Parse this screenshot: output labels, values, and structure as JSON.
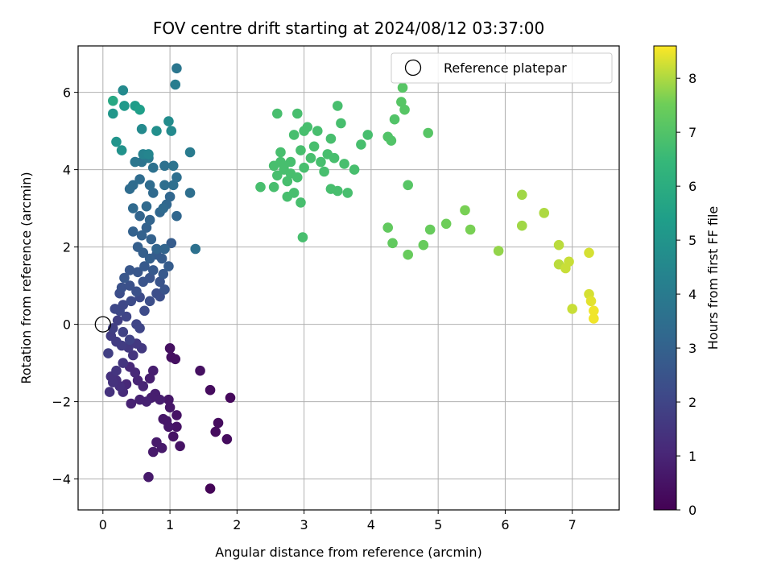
{
  "chart_data": {
    "type": "scatter",
    "title": "FOV centre drift starting at 2024/08/12 03:37:00",
    "xlabel": "Angular distance from reference (arcmin)",
    "ylabel": "Rotation from reference (arcmin)",
    "xlim": [
      -0.37,
      7.7
    ],
    "ylim": [
      -4.8,
      7.2
    ],
    "xticks": [
      0,
      1,
      2,
      3,
      4,
      5,
      6,
      7
    ],
    "yticks": [
      -4,
      -2,
      0,
      2,
      4,
      6
    ],
    "ytick_labels": [
      "−4",
      "−2",
      "0",
      "2",
      "4",
      "6"
    ],
    "grid": true,
    "legend": {
      "label": "Reference platepar",
      "placement": "top-right"
    },
    "reference_point": {
      "x": 0,
      "y": 0
    },
    "colorbar": {
      "label": "Hours from first FF file",
      "min": 0,
      "max": 8.6,
      "ticks": [
        0,
        1,
        2,
        3,
        4,
        5,
        6,
        7,
        8
      ],
      "colormap": "viridis"
    },
    "points": [
      {
        "x": 1.6,
        "y": -4.25,
        "h": 0.1
      },
      {
        "x": 1.85,
        "y": -2.97,
        "h": 0.3
      },
      {
        "x": 1.9,
        "y": -1.9,
        "h": 0.2
      },
      {
        "x": 1.72,
        "y": -2.55,
        "h": 0.3
      },
      {
        "x": 1.68,
        "y": -2.78,
        "h": 0.3
      },
      {
        "x": 1.6,
        "y": -1.7,
        "h": 0.3
      },
      {
        "x": 1.45,
        "y": -1.2,
        "h": 0.4
      },
      {
        "x": 1.15,
        "y": -3.15,
        "h": 0.5
      },
      {
        "x": 1.1,
        "y": -2.65,
        "h": 0.5
      },
      {
        "x": 1.1,
        "y": -2.35,
        "h": 0.5
      },
      {
        "x": 1.05,
        "y": -2.9,
        "h": 0.5
      },
      {
        "x": 1.0,
        "y": -0.62,
        "h": 0.4
      },
      {
        "x": 1.02,
        "y": -0.85,
        "h": 0.4
      },
      {
        "x": 1.08,
        "y": -0.9,
        "h": 0.4
      },
      {
        "x": 0.95,
        "y": -2.5,
        "h": 0.6
      },
      {
        "x": 0.98,
        "y": -2.65,
        "h": 0.6
      },
      {
        "x": 0.9,
        "y": -2.45,
        "h": 0.6
      },
      {
        "x": 1.0,
        "y": -2.15,
        "h": 0.6
      },
      {
        "x": 0.98,
        "y": -1.95,
        "h": 0.6
      },
      {
        "x": 0.88,
        "y": -3.2,
        "h": 0.7
      },
      {
        "x": 0.8,
        "y": -3.05,
        "h": 0.7
      },
      {
        "x": 0.75,
        "y": -3.3,
        "h": 0.7
      },
      {
        "x": 0.68,
        "y": -3.95,
        "h": 0.7
      },
      {
        "x": 0.78,
        "y": -1.8,
        "h": 0.8
      },
      {
        "x": 0.85,
        "y": -1.95,
        "h": 0.8
      },
      {
        "x": 0.72,
        "y": -1.9,
        "h": 0.8
      },
      {
        "x": 0.75,
        "y": -1.2,
        "h": 0.8
      },
      {
        "x": 0.7,
        "y": -1.4,
        "h": 0.8
      },
      {
        "x": 0.65,
        "y": -2.0,
        "h": 0.9
      },
      {
        "x": 0.55,
        "y": -1.95,
        "h": 0.9
      },
      {
        "x": 0.42,
        "y": -2.05,
        "h": 0.9
      },
      {
        "x": 0.52,
        "y": -1.45,
        "h": 1.0
      },
      {
        "x": 0.6,
        "y": -1.6,
        "h": 1.0
      },
      {
        "x": 0.48,
        "y": -1.25,
        "h": 1.1
      },
      {
        "x": 0.4,
        "y": -1.1,
        "h": 1.1
      },
      {
        "x": 0.35,
        "y": -1.55,
        "h": 1.1
      },
      {
        "x": 0.3,
        "y": -1.75,
        "h": 1.2
      },
      {
        "x": 0.25,
        "y": -1.6,
        "h": 1.3
      },
      {
        "x": 0.2,
        "y": -1.45,
        "h": 1.3
      },
      {
        "x": 0.15,
        "y": -1.5,
        "h": 1.4
      },
      {
        "x": 0.1,
        "y": -1.75,
        "h": 1.4
      },
      {
        "x": 0.12,
        "y": -1.35,
        "h": 1.4
      },
      {
        "x": 0.2,
        "y": -1.2,
        "h": 1.5
      },
      {
        "x": 0.3,
        "y": -1.0,
        "h": 1.5
      },
      {
        "x": 0.45,
        "y": -0.8,
        "h": 1.5
      },
      {
        "x": 0.58,
        "y": -0.62,
        "h": 1.6
      },
      {
        "x": 0.5,
        "y": -0.5,
        "h": 1.6
      },
      {
        "x": 0.38,
        "y": -0.6,
        "h": 1.6
      },
      {
        "x": 0.28,
        "y": -0.55,
        "h": 1.7
      },
      {
        "x": 0.2,
        "y": -0.45,
        "h": 1.7
      },
      {
        "x": 0.12,
        "y": -0.3,
        "h": 1.7
      },
      {
        "x": 0.08,
        "y": -0.75,
        "h": 1.8
      },
      {
        "x": 0.15,
        "y": -0.1,
        "h": 1.8
      },
      {
        "x": 0.22,
        "y": 0.1,
        "h": 1.8
      },
      {
        "x": 0.3,
        "y": -0.2,
        "h": 1.9
      },
      {
        "x": 0.4,
        "y": -0.4,
        "h": 1.9
      },
      {
        "x": 0.5,
        "y": 0.0,
        "h": 2.0
      },
      {
        "x": 0.55,
        "y": -0.1,
        "h": 2.0
      },
      {
        "x": 0.35,
        "y": 0.2,
        "h": 2.0
      },
      {
        "x": 0.25,
        "y": 0.35,
        "h": 2.1
      },
      {
        "x": 0.18,
        "y": 0.4,
        "h": 2.1
      },
      {
        "x": 0.3,
        "y": 0.5,
        "h": 2.1
      },
      {
        "x": 0.42,
        "y": 0.6,
        "h": 2.2
      },
      {
        "x": 0.55,
        "y": 0.7,
        "h": 2.2
      },
      {
        "x": 0.62,
        "y": 0.35,
        "h": 2.2
      },
      {
        "x": 0.7,
        "y": 0.6,
        "h": 2.3
      },
      {
        "x": 0.8,
        "y": 0.8,
        "h": 2.3
      },
      {
        "x": 0.85,
        "y": 0.72,
        "h": 2.3
      },
      {
        "x": 0.25,
        "y": 0.8,
        "h": 2.3
      },
      {
        "x": 0.28,
        "y": 0.95,
        "h": 2.4
      },
      {
        "x": 0.4,
        "y": 1.0,
        "h": 2.4
      },
      {
        "x": 0.5,
        "y": 0.85,
        "h": 2.4
      },
      {
        "x": 0.6,
        "y": 1.1,
        "h": 2.5
      },
      {
        "x": 0.7,
        "y": 1.2,
        "h": 2.5
      },
      {
        "x": 0.85,
        "y": 1.1,
        "h": 2.5
      },
      {
        "x": 0.92,
        "y": 0.9,
        "h": 2.5
      },
      {
        "x": 0.32,
        "y": 1.2,
        "h": 2.6
      },
      {
        "x": 0.4,
        "y": 1.4,
        "h": 2.6
      },
      {
        "x": 0.52,
        "y": 1.35,
        "h": 2.6
      },
      {
        "x": 0.62,
        "y": 1.5,
        "h": 2.7
      },
      {
        "x": 0.75,
        "y": 1.4,
        "h": 2.7
      },
      {
        "x": 0.9,
        "y": 1.3,
        "h": 2.7
      },
      {
        "x": 0.98,
        "y": 1.5,
        "h": 2.8
      },
      {
        "x": 1.02,
        "y": 2.1,
        "h": 2.8
      },
      {
        "x": 0.88,
        "y": 1.7,
        "h": 2.8
      },
      {
        "x": 0.8,
        "y": 1.8,
        "h": 2.8
      },
      {
        "x": 0.7,
        "y": 1.7,
        "h": 2.9
      },
      {
        "x": 0.6,
        "y": 1.85,
        "h": 2.9
      },
      {
        "x": 0.52,
        "y": 2.0,
        "h": 2.9
      },
      {
        "x": 0.45,
        "y": 2.4,
        "h": 3.0
      },
      {
        "x": 0.58,
        "y": 2.3,
        "h": 3.0
      },
      {
        "x": 0.65,
        "y": 2.5,
        "h": 3.0
      },
      {
        "x": 0.72,
        "y": 2.2,
        "h": 3.0
      },
      {
        "x": 0.8,
        "y": 1.95,
        "h": 3.1
      },
      {
        "x": 0.92,
        "y": 1.95,
        "h": 3.1
      },
      {
        "x": 0.55,
        "y": 2.8,
        "h": 3.1
      },
      {
        "x": 0.7,
        "y": 2.7,
        "h": 3.1
      },
      {
        "x": 0.85,
        "y": 2.9,
        "h": 3.2
      },
      {
        "x": 0.95,
        "y": 3.1,
        "h": 3.2
      },
      {
        "x": 1.0,
        "y": 3.3,
        "h": 3.2
      },
      {
        "x": 1.1,
        "y": 2.8,
        "h": 3.2
      },
      {
        "x": 0.9,
        "y": 3.0,
        "h": 3.3
      },
      {
        "x": 0.45,
        "y": 3.0,
        "h": 3.3
      },
      {
        "x": 0.65,
        "y": 3.05,
        "h": 3.3
      },
      {
        "x": 0.75,
        "y": 3.4,
        "h": 3.3
      },
      {
        "x": 0.4,
        "y": 3.5,
        "h": 3.4
      },
      {
        "x": 0.45,
        "y": 3.6,
        "h": 3.4
      },
      {
        "x": 0.55,
        "y": 3.75,
        "h": 3.4
      },
      {
        "x": 0.7,
        "y": 3.6,
        "h": 3.4
      },
      {
        "x": 0.92,
        "y": 3.6,
        "h": 3.5
      },
      {
        "x": 1.05,
        "y": 3.6,
        "h": 3.5
      },
      {
        "x": 1.1,
        "y": 3.8,
        "h": 3.5
      },
      {
        "x": 1.3,
        "y": 3.4,
        "h": 3.5
      },
      {
        "x": 1.38,
        "y": 1.95,
        "h": 3.6
      },
      {
        "x": 0.75,
        "y": 4.05,
        "h": 3.6
      },
      {
        "x": 0.92,
        "y": 4.1,
        "h": 3.6
      },
      {
        "x": 1.05,
        "y": 4.1,
        "h": 3.7
      },
      {
        "x": 0.58,
        "y": 4.2,
        "h": 3.7
      },
      {
        "x": 0.48,
        "y": 4.2,
        "h": 3.8
      },
      {
        "x": 0.68,
        "y": 4.3,
        "h": 3.9
      },
      {
        "x": 1.3,
        "y": 4.45,
        "h": 4.0
      },
      {
        "x": 0.6,
        "y": 4.4,
        "h": 4.3
      },
      {
        "x": 0.68,
        "y": 4.4,
        "h": 4.4
      },
      {
        "x": 0.58,
        "y": 5.05,
        "h": 4.6
      },
      {
        "x": 1.02,
        "y": 5.0,
        "h": 4.6
      },
      {
        "x": 1.08,
        "y": 6.2,
        "h": 4.1
      },
      {
        "x": 1.1,
        "y": 6.62,
        "h": 3.8
      },
      {
        "x": 0.98,
        "y": 5.25,
        "h": 4.7
      },
      {
        "x": 0.8,
        "y": 5.0,
        "h": 4.8
      },
      {
        "x": 0.3,
        "y": 6.05,
        "h": 4.6
      },
      {
        "x": 0.28,
        "y": 4.5,
        "h": 4.9
      },
      {
        "x": 0.2,
        "y": 4.72,
        "h": 5.0
      },
      {
        "x": 0.15,
        "y": 5.45,
        "h": 5.1
      },
      {
        "x": 0.32,
        "y": 5.65,
        "h": 5.2
      },
      {
        "x": 0.48,
        "y": 5.65,
        "h": 5.3
      },
      {
        "x": 0.55,
        "y": 5.55,
        "h": 5.4
      },
      {
        "x": 0.15,
        "y": 5.78,
        "h": 5.8
      },
      {
        "x": 2.55,
        "y": 3.55,
        "h": 6.8
      },
      {
        "x": 2.6,
        "y": 3.85,
        "h": 6.8
      },
      {
        "x": 2.65,
        "y": 4.2,
        "h": 6.8
      },
      {
        "x": 2.7,
        "y": 4.0,
        "h": 6.8
      },
      {
        "x": 2.75,
        "y": 3.3,
        "h": 6.8
      },
      {
        "x": 2.8,
        "y": 3.9,
        "h": 6.8
      },
      {
        "x": 2.85,
        "y": 3.4,
        "h": 6.8
      },
      {
        "x": 2.9,
        "y": 3.8,
        "h": 6.8
      },
      {
        "x": 2.95,
        "y": 3.15,
        "h": 6.8
      },
      {
        "x": 3.0,
        "y": 4.05,
        "h": 6.8
      },
      {
        "x": 2.98,
        "y": 2.25,
        "h": 6.8
      },
      {
        "x": 2.6,
        "y": 5.45,
        "h": 6.8
      },
      {
        "x": 2.85,
        "y": 4.9,
        "h": 6.8
      },
      {
        "x": 2.9,
        "y": 5.45,
        "h": 6.8
      },
      {
        "x": 2.95,
        "y": 4.5,
        "h": 6.8
      },
      {
        "x": 3.0,
        "y": 5.0,
        "h": 6.8
      },
      {
        "x": 3.05,
        "y": 5.1,
        "h": 6.8
      },
      {
        "x": 3.1,
        "y": 4.3,
        "h": 6.8
      },
      {
        "x": 3.15,
        "y": 4.6,
        "h": 6.8
      },
      {
        "x": 3.2,
        "y": 5.0,
        "h": 6.8
      },
      {
        "x": 3.25,
        "y": 4.2,
        "h": 6.8
      },
      {
        "x": 3.3,
        "y": 3.95,
        "h": 6.8
      },
      {
        "x": 3.35,
        "y": 4.4,
        "h": 6.8
      },
      {
        "x": 3.4,
        "y": 4.8,
        "h": 6.8
      },
      {
        "x": 3.45,
        "y": 4.3,
        "h": 6.8
      },
      {
        "x": 3.5,
        "y": 5.65,
        "h": 6.8
      },
      {
        "x": 3.55,
        "y": 5.2,
        "h": 6.8
      },
      {
        "x": 3.6,
        "y": 4.15,
        "h": 6.8
      },
      {
        "x": 3.65,
        "y": 3.4,
        "h": 6.8
      },
      {
        "x": 3.4,
        "y": 3.5,
        "h": 6.8
      },
      {
        "x": 3.5,
        "y": 3.45,
        "h": 6.8
      },
      {
        "x": 3.75,
        "y": 4.0,
        "h": 6.8
      },
      {
        "x": 3.85,
        "y": 4.65,
        "h": 6.8
      },
      {
        "x": 3.95,
        "y": 4.9,
        "h": 6.8
      },
      {
        "x": 2.55,
        "y": 4.1,
        "h": 6.8
      },
      {
        "x": 2.65,
        "y": 4.45,
        "h": 6.8
      },
      {
        "x": 2.7,
        "y": 4.1,
        "h": 6.8
      },
      {
        "x": 2.75,
        "y": 3.7,
        "h": 6.8
      },
      {
        "x": 2.8,
        "y": 4.2,
        "h": 6.8
      },
      {
        "x": 2.35,
        "y": 3.55,
        "h": 6.8
      },
      {
        "x": 4.25,
        "y": 4.85,
        "h": 7.0
      },
      {
        "x": 4.3,
        "y": 4.75,
        "h": 7.0
      },
      {
        "x": 4.35,
        "y": 5.3,
        "h": 7.0
      },
      {
        "x": 4.45,
        "y": 5.75,
        "h": 7.1
      },
      {
        "x": 4.5,
        "y": 5.55,
        "h": 7.1
      },
      {
        "x": 4.47,
        "y": 6.12,
        "h": 7.1
      },
      {
        "x": 4.55,
        "y": 3.6,
        "h": 7.1
      },
      {
        "x": 4.85,
        "y": 4.95,
        "h": 7.1
      },
      {
        "x": 4.25,
        "y": 2.5,
        "h": 7.3
      },
      {
        "x": 4.32,
        "y": 2.1,
        "h": 7.3
      },
      {
        "x": 4.55,
        "y": 1.8,
        "h": 7.4
      },
      {
        "x": 4.78,
        "y": 2.05,
        "h": 7.4
      },
      {
        "x": 4.88,
        "y": 2.45,
        "h": 7.4
      },
      {
        "x": 5.12,
        "y": 2.6,
        "h": 7.5
      },
      {
        "x": 5.4,
        "y": 2.95,
        "h": 7.6
      },
      {
        "x": 5.48,
        "y": 2.45,
        "h": 7.6
      },
      {
        "x": 5.9,
        "y": 1.9,
        "h": 7.8
      },
      {
        "x": 6.25,
        "y": 3.35,
        "h": 7.9
      },
      {
        "x": 6.25,
        "y": 2.55,
        "h": 7.9
      },
      {
        "x": 6.58,
        "y": 2.88,
        "h": 8.0
      },
      {
        "x": 6.8,
        "y": 2.05,
        "h": 8.1
      },
      {
        "x": 6.8,
        "y": 1.55,
        "h": 8.1
      },
      {
        "x": 6.9,
        "y": 1.45,
        "h": 8.2
      },
      {
        "x": 6.95,
        "y": 1.62,
        "h": 8.2
      },
      {
        "x": 7.0,
        "y": 0.4,
        "h": 8.2
      },
      {
        "x": 7.25,
        "y": 1.85,
        "h": 8.3
      },
      {
        "x": 7.25,
        "y": 0.78,
        "h": 8.3
      },
      {
        "x": 7.28,
        "y": 0.6,
        "h": 8.4
      },
      {
        "x": 7.32,
        "y": 0.35,
        "h": 8.5
      },
      {
        "x": 7.32,
        "y": 0.15,
        "h": 8.5
      }
    ]
  }
}
